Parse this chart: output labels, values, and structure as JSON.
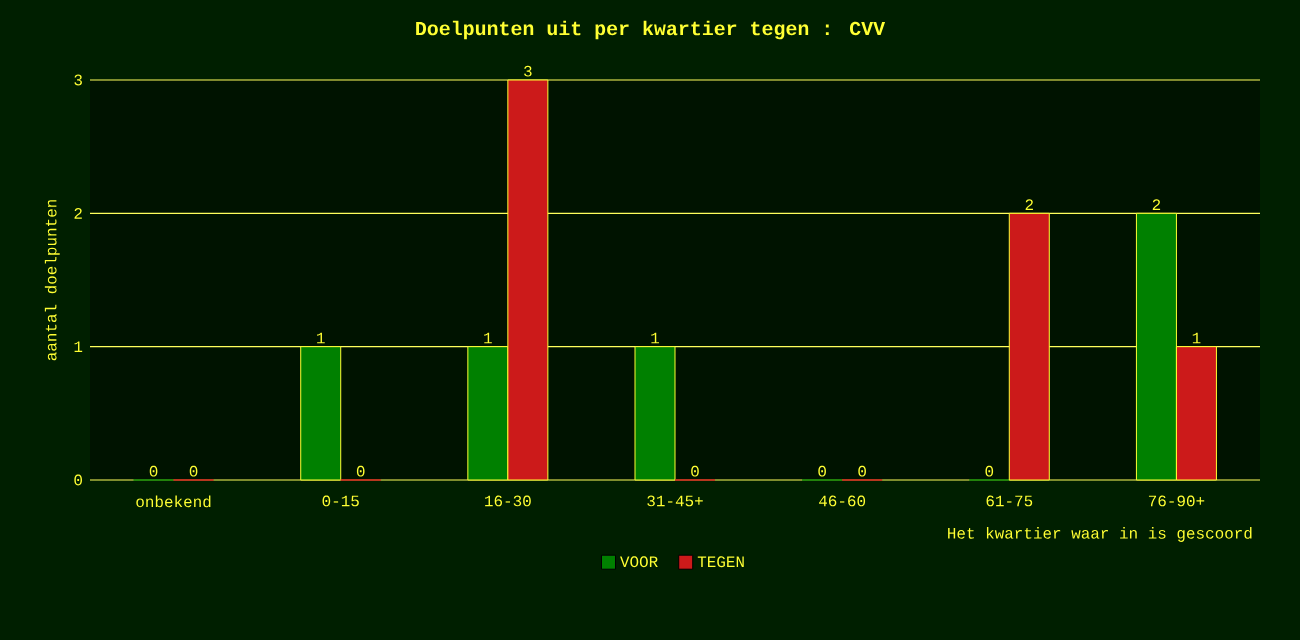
{
  "chart_data": {
    "type": "bar",
    "title": "Doelpunten uit per kwartier tegen : CVV",
    "xlabel": "Het kwartier waar in is gescoord",
    "ylabel": "aantal doelpunten",
    "categories": [
      "onbekend",
      "0-15",
      "16-30",
      "31-45+",
      "46-60",
      "61-75",
      "76-90+"
    ],
    "series": [
      {
        "name": "VOOR",
        "color": "#008000",
        "values": [
          0,
          1,
          1,
          1,
          0,
          0,
          2
        ]
      },
      {
        "name": "TEGEN",
        "color": "#cc1a1a",
        "values": [
          0,
          0,
          3,
          0,
          0,
          2,
          1
        ]
      }
    ],
    "ylim": [
      0,
      3
    ],
    "yticks": [
      0,
      1,
      2,
      3
    ],
    "grid": "y",
    "legend": "bottom",
    "data_labels": true
  }
}
